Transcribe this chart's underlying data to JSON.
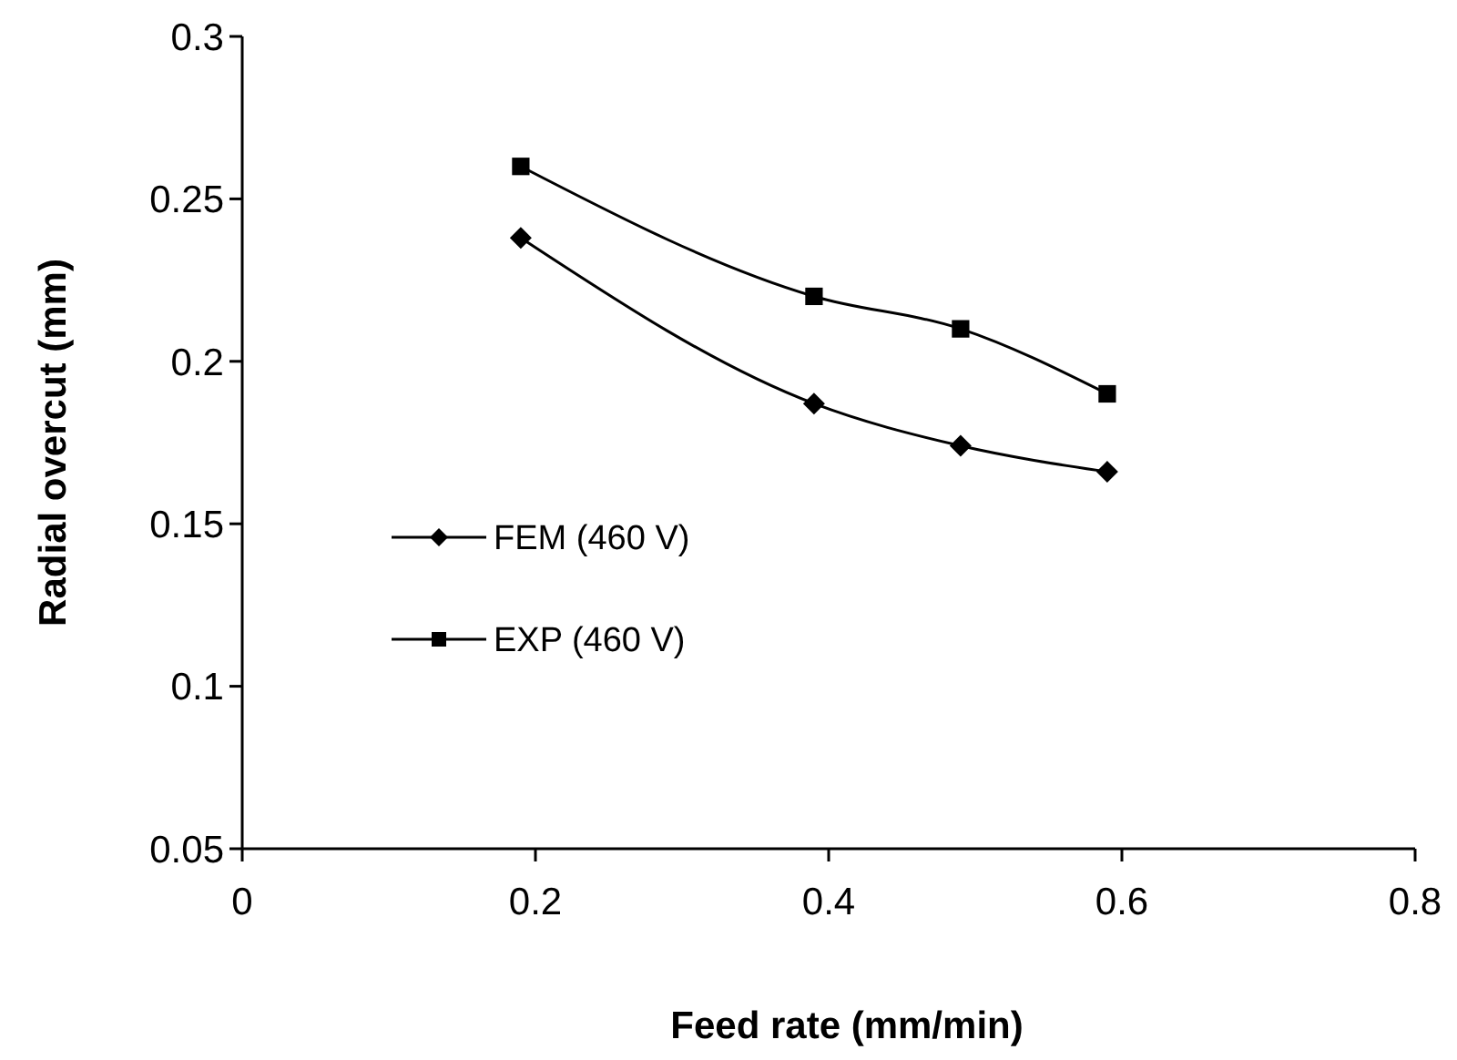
{
  "chart_data": {
    "type": "line",
    "xlabel": "Feed rate (mm/min)",
    "ylabel": "Radial overcut (mm)",
    "x": [
      0.19,
      0.39,
      0.49,
      0.59
    ],
    "xlim": [
      0,
      0.8
    ],
    "xticks": [
      0,
      0.2,
      0.4,
      0.6,
      0.8
    ],
    "ylim": [
      0.05,
      0.3
    ],
    "yticks": [
      0.05,
      0.1,
      0.15,
      0.2,
      0.25,
      0.3
    ],
    "grid": false,
    "legend": "left",
    "line_style": "solid",
    "series": [
      {
        "name": "FEM (460 V)",
        "color": "#000000",
        "marker": "diamond",
        "values": [
          0.238,
          0.187,
          0.174,
          0.166
        ]
      },
      {
        "name": "EXP (460 V)",
        "color": "#000000",
        "marker": "square",
        "values": [
          0.26,
          0.22,
          0.21,
          0.19
        ]
      }
    ]
  }
}
